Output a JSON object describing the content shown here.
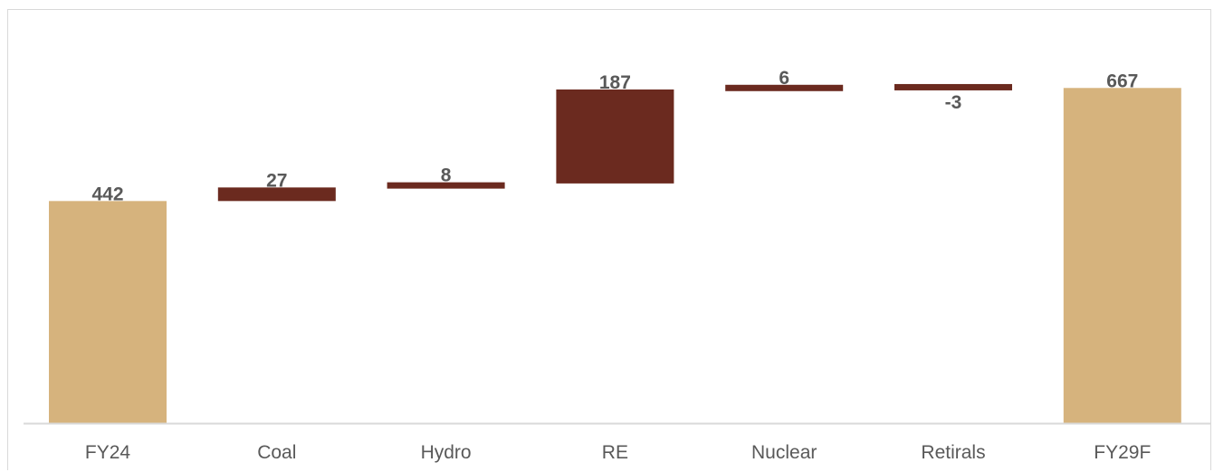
{
  "chart_data": {
    "type": "bar",
    "subtype": "waterfall",
    "categories": [
      "FY24",
      "Coal",
      "Hydro",
      "RE",
      "Nuclear",
      "Retirals",
      "FY29F"
    ],
    "values": [
      442,
      27,
      8,
      187,
      6,
      -3,
      667
    ],
    "value_labels": [
      "442",
      "27",
      "8",
      "187",
      "6",
      "-3",
      "667"
    ],
    "bar_kind": [
      "total",
      "delta",
      "delta",
      "delta",
      "delta",
      "delta",
      "total"
    ],
    "title": "",
    "xlabel": "",
    "ylabel": "",
    "ylim": [
      0,
      700
    ],
    "grid": false,
    "legend": "none",
    "colors": {
      "total": "#D6B37D",
      "delta": "#6B2A1F",
      "label": "#595959",
      "axis": "#d9d9d9"
    }
  }
}
